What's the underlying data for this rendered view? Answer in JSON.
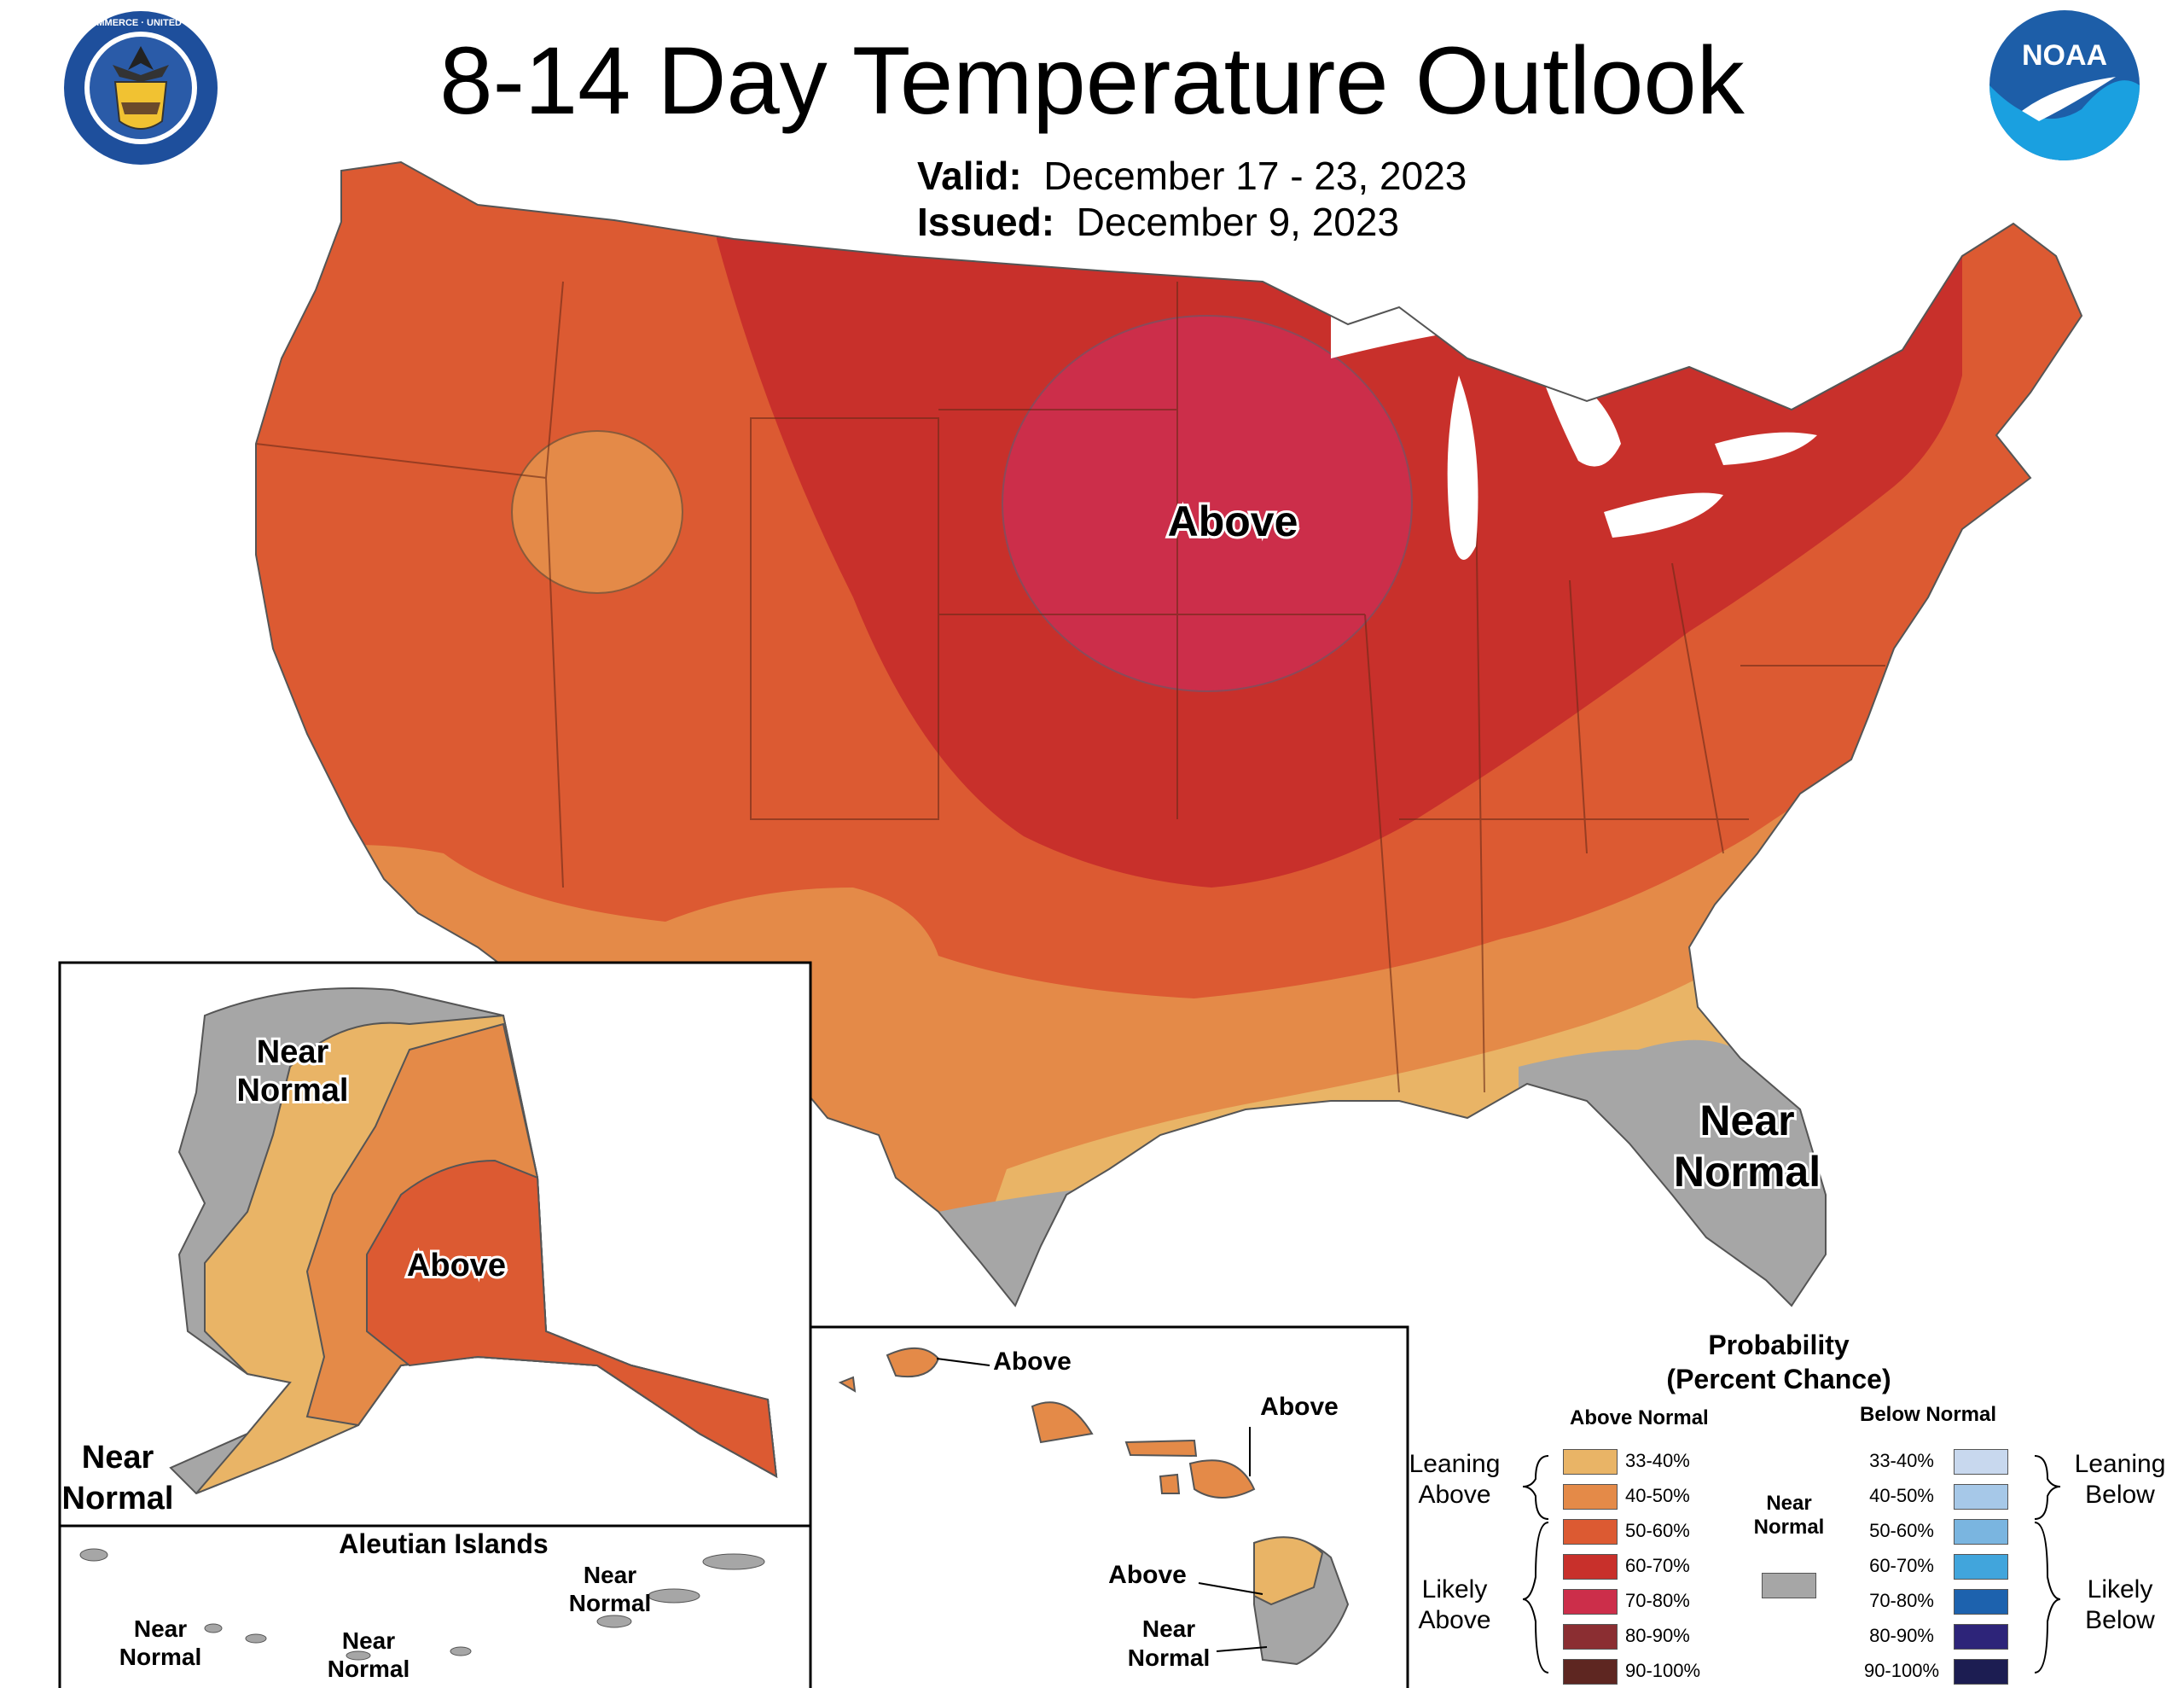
{
  "title": "8-14 Day Temperature Outlook",
  "valid_label": "Valid:",
  "valid_dates": "December 17 - 23, 2023",
  "issued_label": "Issued:",
  "issued_date": "December 9, 2023",
  "logos": {
    "left": "department-of-commerce-seal",
    "right": "noaa-logo",
    "commerce_seal_text": "DEPARTMENT OF COMMERCE · UNITED STATES OF AMERICA",
    "noaa_text": "NOAA"
  },
  "colors": {
    "near_normal": "#a6a6a6",
    "above_33_40": "#e9b466",
    "above_40_50": "#e48a48",
    "above_50_60": "#dc5a32",
    "above_60_70": "#c8302b",
    "above_70_80": "#cc2e4a",
    "above_80_90": "#8b2e32",
    "above_90_100": "#5e2621",
    "below_33_40": "#c8d8ee",
    "below_40_50": "#a6c8e8",
    "below_50_60": "#7ab5e0",
    "below_60_70": "#41a5dc",
    "below_70_80": "#1d62ae",
    "below_80_90": "#2d2479",
    "below_90_100": "#1c1d52"
  },
  "map_labels": {
    "conus_above": "Above",
    "conus_near_1": "Near",
    "conus_near_2": "Normal",
    "ak_near_top_1": "Near",
    "ak_near_top_2": "Normal",
    "ak_above": "Above",
    "ak_near_bottom_1": "Near",
    "ak_near_bottom_2": "Normal",
    "aleutian_title": "Aleutian Islands",
    "aleut_near_1a": "Near",
    "aleut_near_1b": "Normal",
    "aleut_near_2a": "Near",
    "aleut_near_2b": "Normal",
    "aleut_near_3a": "Near",
    "aleut_near_3b": "Normal",
    "hi_above_1": "Above",
    "hi_above_2": "Above",
    "hi_above_3": "Above",
    "hi_near_a": "Near",
    "hi_near_b": "Normal"
  },
  "legend": {
    "title_1": "Probability",
    "title_2": "(Percent Chance)",
    "above_header": "Above Normal",
    "below_header": "Below Normal",
    "near_label_1": "Near",
    "near_label_2": "Normal",
    "leaning_above_1": "Leaning",
    "leaning_above_2": "Above",
    "likely_above_1": "Likely",
    "likely_above_2": "Above",
    "leaning_below_1": "Leaning",
    "leaning_below_2": "Below",
    "likely_below_1": "Likely",
    "likely_below_2": "Below",
    "ranges": [
      "33-40%",
      "40-50%",
      "50-60%",
      "60-70%",
      "70-80%",
      "80-90%",
      "90-100%"
    ]
  }
}
